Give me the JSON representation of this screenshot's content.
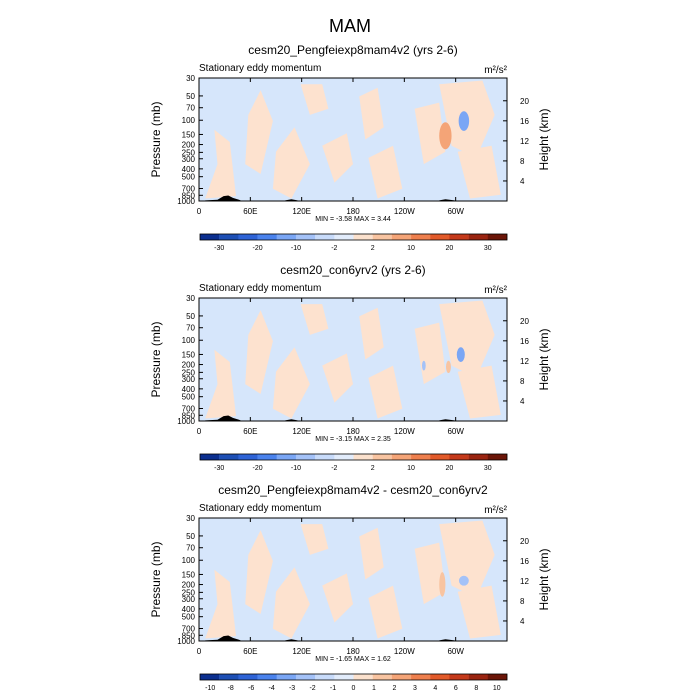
{
  "page_title": "MAM",
  "colors": {
    "frame": "#000000",
    "background_field": "#d6e6fb",
    "positive_field": "#fde2cf",
    "terrain": "#000000"
  },
  "chart_data": [
    {
      "type": "heatmap",
      "title": "cesm20_Pengfeiexp8mam4v2 (yrs 2-6)",
      "subtitle": "Stationary eddy momentum",
      "units": "m²/s²",
      "ylabel": "Pressure (mb)",
      "y2label": "Height (km)",
      "x_ticks": [
        "0",
        "60E",
        "120E",
        "180",
        "120W",
        "60W"
      ],
      "x_tick_lon": [
        0,
        60,
        120,
        180,
        240,
        300
      ],
      "xlim": [
        0,
        360
      ],
      "y_ticks": [
        "30",
        "50",
        "70",
        "100",
        "150",
        "200",
        "250",
        "300",
        "400",
        "500",
        "700",
        "850",
        "1000"
      ],
      "y_tick_p": [
        30,
        50,
        70,
        100,
        150,
        200,
        250,
        300,
        400,
        500,
        700,
        850,
        1000
      ],
      "ylim": [
        1000,
        30
      ],
      "y_scale": "log",
      "y2_ticks": [
        "4",
        "8",
        "12",
        "16",
        "20"
      ],
      "y2_tick_km": [
        4,
        8,
        12,
        16,
        20
      ],
      "stats": "MIN = -3.58  MAX = 3.44",
      "colorbar_labels": [
        "-30",
        "-20",
        "-10",
        "-2",
        "2",
        "10",
        "20",
        "30"
      ],
      "colorbar_colors": [
        "#0b2f8f",
        "#1d4fb5",
        "#2e63d6",
        "#4a82ec",
        "#7aa6f5",
        "#a4c2f8",
        "#c8dbfa",
        "#e2ecfb",
        "#fbe1cd",
        "#f8c4a1",
        "#f4a477",
        "#ee7f4d",
        "#e25a2a",
        "#c4391a",
        "#9a2410",
        "#6b1508"
      ],
      "min": -3.58,
      "max": 3.44
    },
    {
      "type": "heatmap",
      "title": "cesm20_con6yrv2 (yrs 2-6)",
      "subtitle": "Stationary eddy momentum",
      "units": "m²/s²",
      "ylabel": "Pressure (mb)",
      "y2label": "Height (km)",
      "x_ticks": [
        "0",
        "60E",
        "120E",
        "180",
        "120W",
        "60W"
      ],
      "x_tick_lon": [
        0,
        60,
        120,
        180,
        240,
        300
      ],
      "xlim": [
        0,
        360
      ],
      "y_ticks": [
        "30",
        "50",
        "70",
        "100",
        "150",
        "200",
        "250",
        "300",
        "400",
        "500",
        "700",
        "850",
        "1000"
      ],
      "y_tick_p": [
        30,
        50,
        70,
        100,
        150,
        200,
        250,
        300,
        400,
        500,
        700,
        850,
        1000
      ],
      "ylim": [
        1000,
        30
      ],
      "y_scale": "log",
      "y2_ticks": [
        "4",
        "8",
        "12",
        "16",
        "20"
      ],
      "y2_tick_km": [
        4,
        8,
        12,
        16,
        20
      ],
      "stats": "MIN = -3.15  MAX = 2.35",
      "colorbar_labels": [
        "-30",
        "-20",
        "-10",
        "-2",
        "2",
        "10",
        "20",
        "30"
      ],
      "colorbar_colors": [
        "#0b2f8f",
        "#1d4fb5",
        "#2e63d6",
        "#4a82ec",
        "#7aa6f5",
        "#a4c2f8",
        "#c8dbfa",
        "#e2ecfb",
        "#fbe1cd",
        "#f8c4a1",
        "#f4a477",
        "#ee7f4d",
        "#e25a2a",
        "#c4391a",
        "#9a2410",
        "#6b1508"
      ],
      "min": -3.15,
      "max": 2.35
    },
    {
      "type": "heatmap",
      "title": "cesm20_Pengfeiexp8mam4v2 - cesm20_con6yrv2",
      "subtitle": "Stationary eddy momentum",
      "units": "m²/s²",
      "ylabel": "Pressure (mb)",
      "y2label": "Height (km)",
      "x_ticks": [
        "0",
        "60E",
        "120E",
        "180",
        "120W",
        "60W"
      ],
      "x_tick_lon": [
        0,
        60,
        120,
        180,
        240,
        300
      ],
      "xlim": [
        0,
        360
      ],
      "y_ticks": [
        "30",
        "50",
        "70",
        "100",
        "150",
        "200",
        "250",
        "300",
        "400",
        "500",
        "700",
        "850",
        "1000"
      ],
      "y_tick_p": [
        30,
        50,
        70,
        100,
        150,
        200,
        250,
        300,
        400,
        500,
        700,
        850,
        1000
      ],
      "ylim": [
        1000,
        30
      ],
      "y_scale": "log",
      "y2_ticks": [
        "4",
        "8",
        "12",
        "16",
        "20"
      ],
      "y2_tick_km": [
        4,
        8,
        12,
        16,
        20
      ],
      "stats": "MIN = -1.65  MAX = 1.62",
      "colorbar_labels": [
        "-10",
        "-8",
        "-6",
        "-4",
        "-3",
        "-2",
        "-1",
        "0",
        "1",
        "2",
        "3",
        "4",
        "6",
        "8",
        "10"
      ],
      "colorbar_colors": [
        "#0b2f8f",
        "#1d4fb5",
        "#2e63d6",
        "#4a82ec",
        "#7aa6f5",
        "#a4c2f8",
        "#c8dbfa",
        "#e2ecfb",
        "#fbe1cd",
        "#f8c4a1",
        "#f4a477",
        "#ee7f4d",
        "#e25a2a",
        "#c4391a",
        "#9a2410",
        "#6b1508"
      ],
      "min": -1.65,
      "max": 1.62
    }
  ]
}
